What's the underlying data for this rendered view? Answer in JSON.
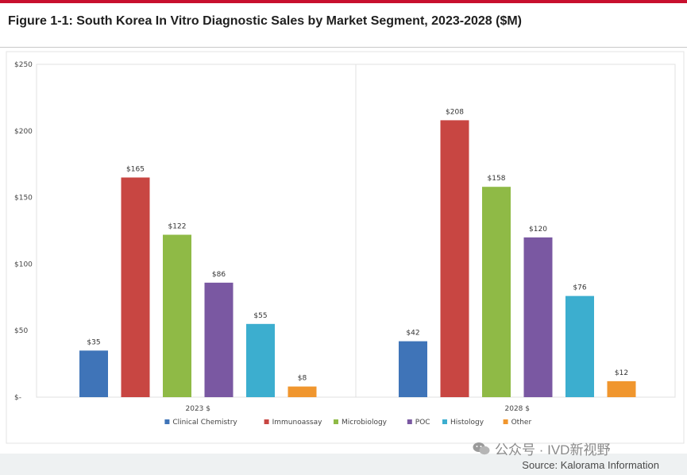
{
  "figure": {
    "title": "Figure 1-1: South Korea In Vitro Diagnostic Sales by Market Segment, 2023-2028 ($M)",
    "source": "Source: Kalorama Information",
    "watermark": "公众号 · IVD新视野",
    "accent_color": "#c8102e"
  },
  "chart_data": {
    "type": "bar",
    "title": "",
    "xlabel": "",
    "ylabel": "",
    "ylim": [
      0,
      250
    ],
    "yticks": [
      0,
      50,
      100,
      150,
      200,
      250
    ],
    "ytick_labels": [
      "$-",
      "$50",
      "$100",
      "$150",
      "$200",
      "$250"
    ],
    "categories": [
      "2023 $",
      "2028 $"
    ],
    "series": [
      {
        "name": "Clinical Chemistry",
        "color": "#3f74b8",
        "values": [
          35,
          42
        ],
        "labels": [
          "$35",
          "$42"
        ]
      },
      {
        "name": "Immunoassay",
        "color": "#c84642",
        "values": [
          165,
          208
        ],
        "labels": [
          "$165",
          "$208"
        ]
      },
      {
        "name": "Microbiology",
        "color": "#8fba46",
        "values": [
          122,
          158
        ],
        "labels": [
          "$122",
          "$158"
        ]
      },
      {
        "name": "POC",
        "color": "#7a58a2",
        "values": [
          86,
          120
        ],
        "labels": [
          "$86",
          "$120"
        ]
      },
      {
        "name": "Histology",
        "color": "#3caecf",
        "values": [
          55,
          76
        ],
        "labels": [
          "$55",
          "$76"
        ]
      },
      {
        "name": "Other",
        "color": "#f0962e",
        "values": [
          8,
          12
        ],
        "labels": [
          "$8",
          "$12"
        ]
      }
    ],
    "grid": false,
    "legend": "bottom"
  }
}
